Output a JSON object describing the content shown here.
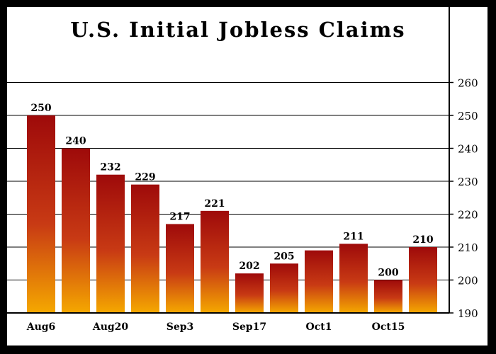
{
  "chart_data": {
    "type": "bar",
    "title": "U.S. Initial Jobless Claims",
    "x_tick_labels": [
      "Aug6",
      "Aug20",
      "Sep3",
      "Sep17",
      "Oct1",
      "Oct15"
    ],
    "values": [
      250,
      240,
      232,
      229,
      217,
      221,
      202,
      205,
      209,
      211,
      200,
      210
    ],
    "data_labels": [
      "250",
      "240",
      "232",
      "229",
      "217",
      "221",
      "202",
      "205",
      "",
      "211",
      "200",
      "210"
    ],
    "y_ticks": [
      190,
      200,
      210,
      220,
      230,
      240,
      250,
      260
    ],
    "ylim": [
      190,
      270
    ],
    "y_axis_position": "right",
    "grid": true,
    "bar_gradient": {
      "top": "#9e0a0a",
      "mid": "#c83a14",
      "bottom": "#f5a800"
    }
  }
}
